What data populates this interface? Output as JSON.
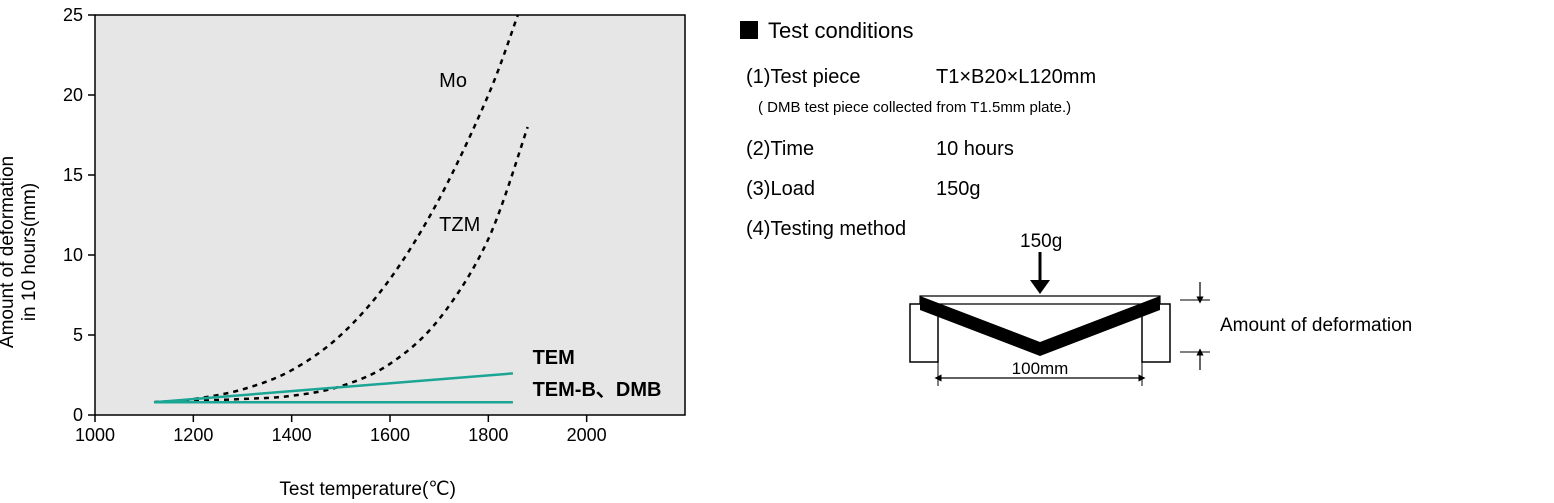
{
  "chart": {
    "type": "line",
    "ylabel": "Amount of deformation\nin 10 hours(mm)",
    "xlabel": "Test temperature(℃)",
    "xlim": [
      1000,
      2200
    ],
    "ylim": [
      0,
      25
    ],
    "xticks": [
      1000,
      1200,
      1400,
      1600,
      1800,
      2000
    ],
    "yticks": [
      0,
      5,
      10,
      15,
      20,
      25
    ],
    "plot_bg": "#e6e6e6",
    "axis_color": "#000000",
    "tick_fontsize": 18,
    "label_fontsize": 19,
    "series": {
      "mo": {
        "label": "Mo",
        "style": "dashed",
        "color": "#000000",
        "points": [
          [
            1120,
            0.8
          ],
          [
            1200,
            1.0
          ],
          [
            1300,
            1.6
          ],
          [
            1400,
            2.8
          ],
          [
            1500,
            5.0
          ],
          [
            1600,
            8.5
          ],
          [
            1700,
            13.5
          ],
          [
            1800,
            20.0
          ],
          [
            1860,
            25.0
          ]
        ],
        "label_pos": [
          1700,
          20.5
        ]
      },
      "tzm": {
        "label": "TZM",
        "style": "dashed",
        "color": "#000000",
        "points": [
          [
            1120,
            0.8
          ],
          [
            1300,
            1.0
          ],
          [
            1400,
            1.2
          ],
          [
            1500,
            1.8
          ],
          [
            1600,
            3.2
          ],
          [
            1700,
            6.0
          ],
          [
            1800,
            11.0
          ],
          [
            1880,
            18.0
          ]
        ],
        "label_pos": [
          1700,
          11.5
        ]
      },
      "tem": {
        "label": "TEM",
        "style": "solid",
        "color": "#1aa594",
        "points": [
          [
            1120,
            0.8
          ],
          [
            1850,
            2.6
          ]
        ],
        "label_pos": [
          1890,
          3.2
        ],
        "bold": true
      },
      "temb": {
        "label": "TEM-B、DMB",
        "style": "solid",
        "color": "#1aa594",
        "points": [
          [
            1120,
            0.8
          ],
          [
            1850,
            0.8
          ]
        ],
        "label_pos": [
          1890,
          1.2
        ],
        "bold": true
      }
    }
  },
  "conditions": {
    "heading": "Test conditions",
    "items": [
      {
        "key": "(1)Test piece",
        "value": "T1×B20×L120mm",
        "note": "( DMB test piece collected from T1.5mm plate.)"
      },
      {
        "key": "(2)Time",
        "value": "10 hours"
      },
      {
        "key": "(3)Load",
        "value": "150g"
      },
      {
        "key": "(4)Testing method",
        "value": ""
      }
    ]
  },
  "diagram": {
    "load_label": "150g",
    "span_label": "100mm",
    "caption": "Amount of deformation",
    "stroke": "#000000",
    "fill": "#000000"
  }
}
